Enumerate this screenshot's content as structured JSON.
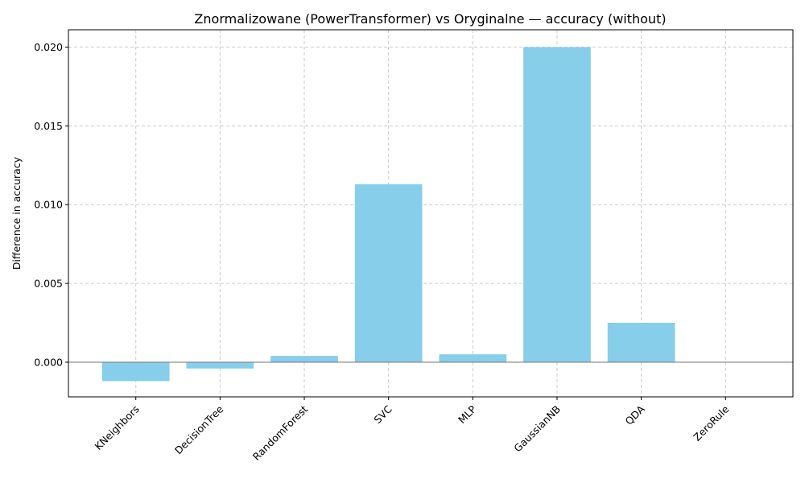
{
  "chart_data": {
    "type": "bar",
    "title": "Znormalizowane (PowerTransformer) vs Oryginalne — accuracy (without)",
    "xlabel": "",
    "ylabel": "Difference in accuracy",
    "categories": [
      "KNeighbors",
      "DecisionTree",
      "RandomForest",
      "SVC",
      "MLP",
      "GaussianNB",
      "QDA",
      "ZeroRule"
    ],
    "values": [
      -0.0012,
      -0.0004,
      0.0004,
      0.0113,
      0.0005,
      0.02,
      0.0025,
      0.0
    ],
    "ylim": [
      -0.0022,
      0.0211
    ],
    "yticks": [
      0.0,
      0.005,
      0.01,
      0.015,
      0.02
    ],
    "ytick_labels": [
      "0.000",
      "0.005",
      "0.010",
      "0.015",
      "0.020"
    ],
    "grid": true,
    "zero_line": true,
    "bar_color": "#87CEEB",
    "grid_color": "#cccccc",
    "zero_line_color": "#808080"
  }
}
